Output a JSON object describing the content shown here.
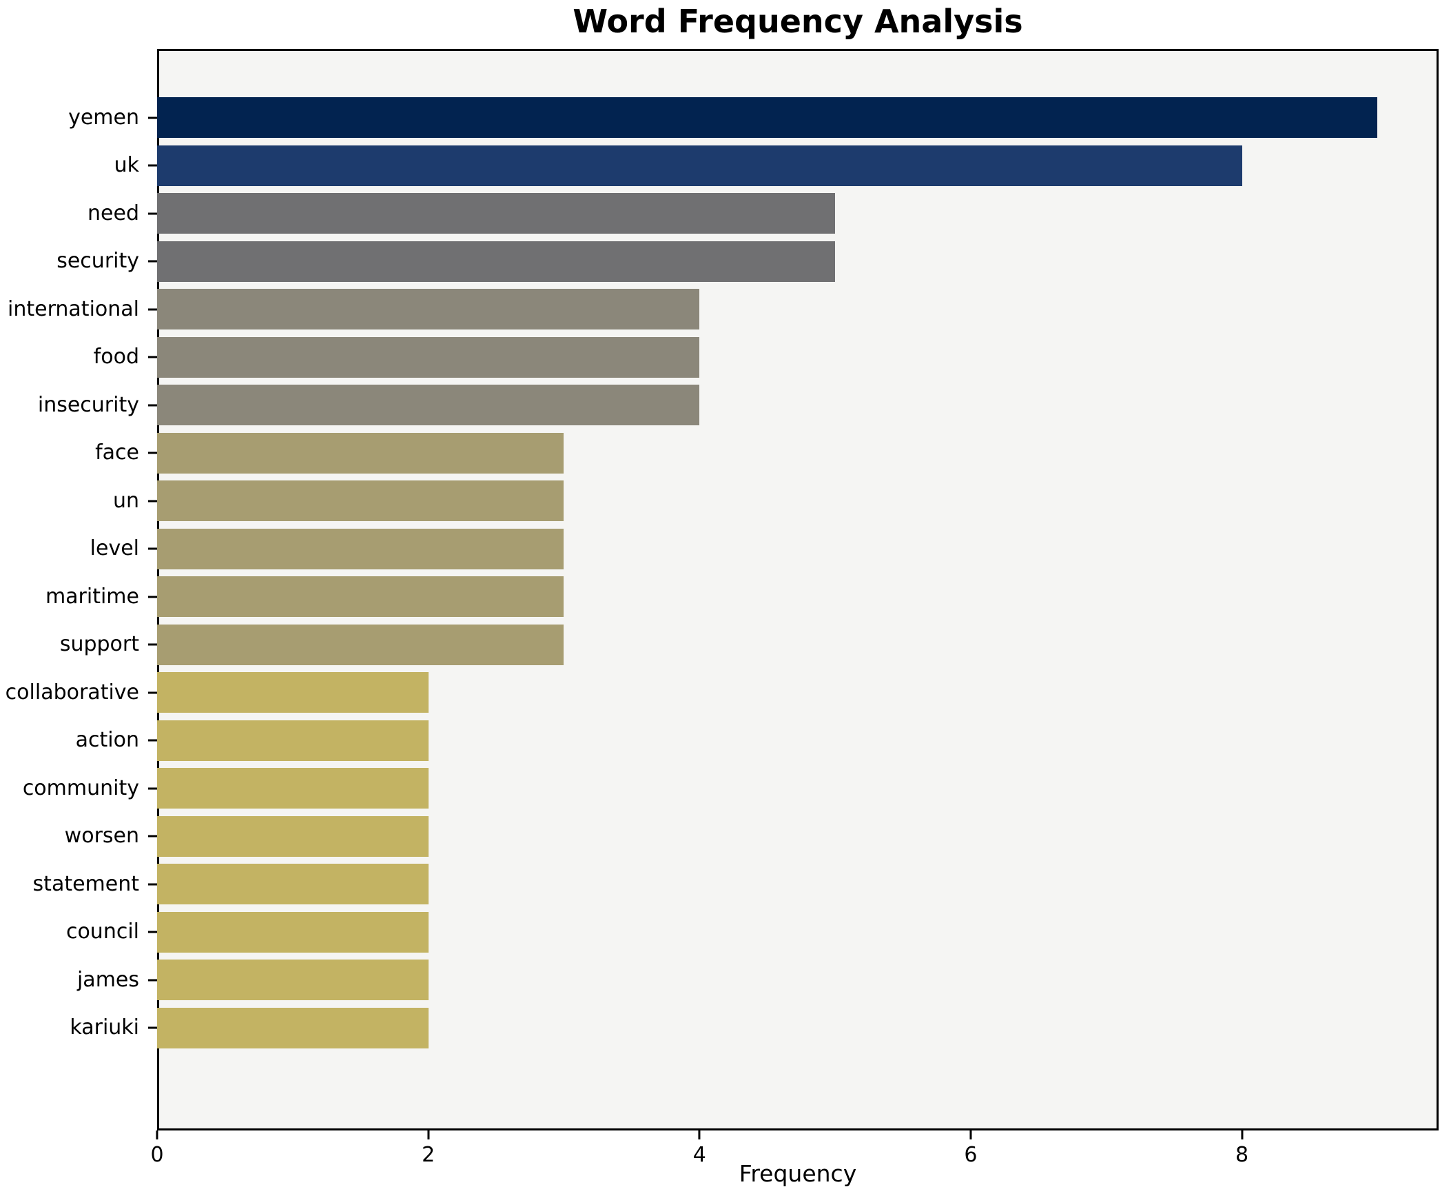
{
  "chart_data": {
    "type": "bar",
    "orientation": "horizontal",
    "title": "Word Frequency Analysis",
    "xlabel": "Frequency",
    "ylabel": "",
    "categories": [
      "yemen",
      "uk",
      "need",
      "security",
      "international",
      "food",
      "insecurity",
      "face",
      "un",
      "level",
      "maritime",
      "support",
      "collaborative",
      "action",
      "community",
      "worsen",
      "statement",
      "council",
      "james",
      "kariuki"
    ],
    "values": [
      9,
      8,
      5,
      5,
      4,
      4,
      4,
      3,
      3,
      3,
      3,
      3,
      2,
      2,
      2,
      2,
      2,
      2,
      2,
      2
    ],
    "bar_colors": [
      "#022350",
      "#1d3b6d",
      "#707072",
      "#707072",
      "#8b877a",
      "#8b877a",
      "#8b877a",
      "#a79d71",
      "#a79d71",
      "#a79d71",
      "#a79d71",
      "#a79d71",
      "#c3b363",
      "#c3b363",
      "#c3b363",
      "#c3b363",
      "#c3b363",
      "#c3b363",
      "#c3b363",
      "#c3b363"
    ],
    "palette_by_value": {
      "9": "#022350",
      "8": "#1d3b6d",
      "5": "#707072",
      "4": "#8b877a",
      "3": "#a79d71",
      "2": "#c3b363"
    },
    "xlim": [
      0,
      9.45
    ],
    "xtick_labels": [
      "0",
      "2",
      "4",
      "6",
      "8"
    ],
    "xtick_values": [
      0,
      2,
      4,
      6,
      8
    ],
    "grid": false,
    "legend": "none",
    "plot_background": "#f5f5f3",
    "figure_background": "#ffffff",
    "axis_color": "#000000",
    "text_color": "#000000"
  }
}
